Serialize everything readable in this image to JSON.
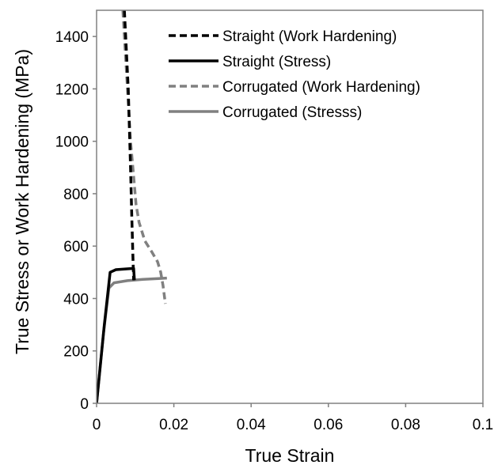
{
  "chart_data": {
    "type": "line",
    "title": "",
    "xlabel": "True Strain",
    "ylabel": "True Stress or Work Hardening (MPa)",
    "xlim": [
      0,
      0.1
    ],
    "ylim": [
      0,
      1500
    ],
    "x_ticks": [
      0,
      0.02,
      0.04,
      0.06,
      0.08,
      0.1
    ],
    "x_tick_labels": [
      "0",
      "0.02",
      "0.04",
      "0.06",
      "0.08",
      "0.1"
    ],
    "y_ticks": [
      0,
      200,
      400,
      600,
      800,
      1000,
      1200,
      1400
    ],
    "y_tick_labels": [
      "0",
      "200",
      "400",
      "600",
      "800",
      "1000",
      "1200",
      "1400"
    ],
    "grid": false,
    "legend_position": "top-right",
    "series": [
      {
        "name": "Straight (Work Hardening)",
        "color": "#000000",
        "dash": "dashed",
        "x": [
          0.0072,
          0.0082,
          0.0088,
          0.0091,
          0.0094,
          0.0096
        ],
        "y": [
          1500,
          1200,
          900,
          720,
          560,
          470
        ]
      },
      {
        "name": "Straight (Stress)",
        "color": "#000000",
        "dash": "solid",
        "x": [
          0,
          0.002,
          0.0035,
          0.005,
          0.0096,
          0.0098
        ],
        "y": [
          0,
          300,
          500,
          510,
          515,
          470
        ]
      },
      {
        "name": "Corrugated (Work Hardening)",
        "color": "#808080",
        "dash": "dashed",
        "x": [
          0.0068,
          0.0076,
          0.0082,
          0.0088,
          0.0095,
          0.0102,
          0.011,
          0.0125,
          0.0142,
          0.0158,
          0.0166,
          0.0172,
          0.0178
        ],
        "y": [
          1500,
          1300,
          1150,
          1000,
          880,
          760,
          690,
          620,
          580,
          540,
          500,
          450,
          380
        ]
      },
      {
        "name": "Corrugated (Stresss)",
        "color": "#808080",
        "dash": "solid",
        "x": [
          0,
          0.0018,
          0.0032,
          0.0045,
          0.008,
          0.012,
          0.016,
          0.0182
        ],
        "y": [
          0,
          270,
          440,
          460,
          468,
          473,
          476,
          478
        ]
      }
    ]
  }
}
